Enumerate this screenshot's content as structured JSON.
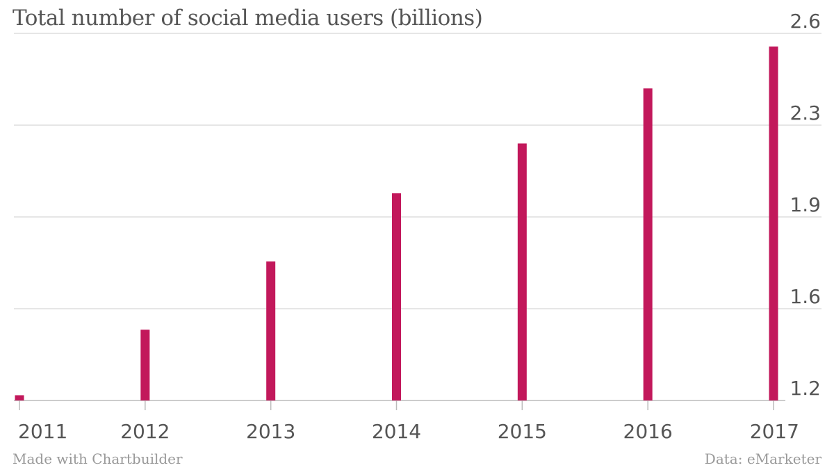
{
  "chart_data": {
    "type": "bar",
    "title": "Total number of social media users (billions)",
    "categories": [
      "2011",
      "2012",
      "2013",
      "2014",
      "2015",
      "2016",
      "2017"
    ],
    "series": [
      {
        "values": [
          1.22,
          1.47,
          1.73,
          1.99,
          2.18,
          2.39,
          2.55
        ]
      }
    ],
    "yticks": [
      "1.2",
      "1.6",
      "1.9",
      "2.3",
      "2.6"
    ],
    "ylim": [
      1.2,
      2.6
    ],
    "y_axis_side": "right",
    "grid": true,
    "bar_color": "#c2185b",
    "grid_color": "#dddddd",
    "axis_color": "#bbbbbb",
    "text_color": "#555555"
  },
  "footer": {
    "credit": "Made with Chartbuilder",
    "source": "Data: eMarketer"
  }
}
